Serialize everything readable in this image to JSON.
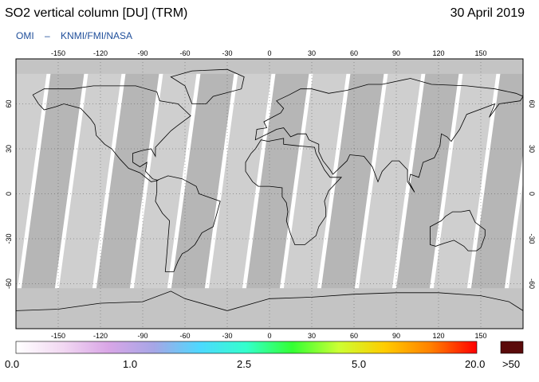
{
  "header": {
    "title": "SO2 vertical column [DU] (TRM)",
    "date": "30 April 2019",
    "instrument": "OMI",
    "dash": "–",
    "organisations": "KNMI/FMI/NASA"
  },
  "map": {
    "longitude_ticks": [
      "-150",
      "-120",
      "-90",
      "-60",
      "-30",
      "0",
      "30",
      "60",
      "90",
      "120",
      "150"
    ],
    "latitude_ticks": [
      "60",
      "30",
      "0",
      "-30",
      "-60"
    ],
    "colors": {
      "ocean_no_data": "#ffffff",
      "swath_light": "#cfcfcf",
      "swath_dark": "#a9a9a9",
      "polar_fill": "#c4c4c4",
      "coastline": "#000000"
    }
  },
  "colorbar": {
    "labels": [
      "0.0",
      "1.0",
      "2.5",
      "5.0",
      "20.0"
    ],
    "overflow_label": ">50",
    "overflow_color": "#5a0a0a",
    "gradient": [
      "#ffffff",
      "#f2d9f2",
      "#d9a6e6",
      "#a6a6e6",
      "#4dd9ff",
      "#33ffcc",
      "#33ff33",
      "#ccff33",
      "#ffcc00",
      "#ff8000",
      "#ff0000"
    ]
  }
}
